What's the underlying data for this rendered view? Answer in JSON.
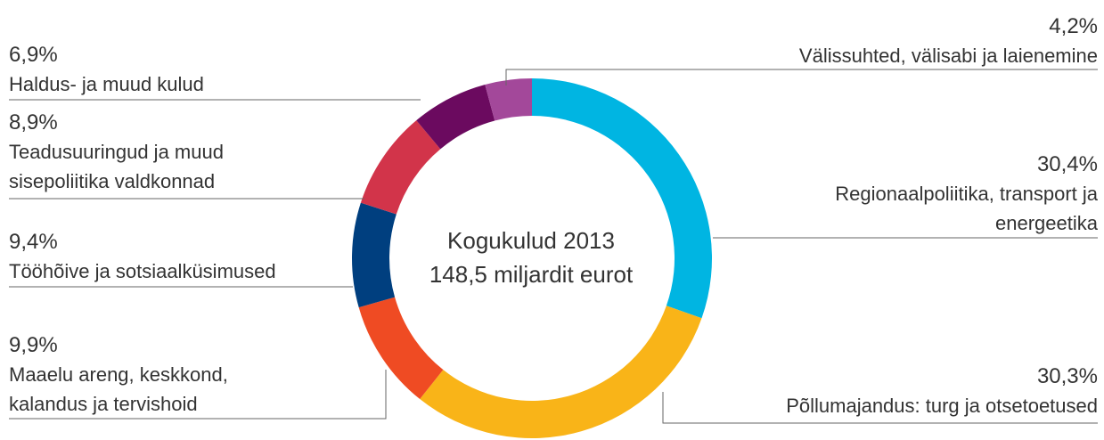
{
  "chart_data": {
    "type": "pie",
    "donut": true,
    "categories": [
      "Regionaalpoliitika, transport ja energeetika",
      "Põllumajandus: turg ja otsetoetused",
      "Maaelu areng, keskkond, kalandus ja tervishoid",
      "Tööhõive ja sotsiaalküsimused",
      "Teadusuuringud ja muud sisepoliitika valdkonnad",
      "Haldus- ja muud kulud",
      "Välissuhted, välisabi ja laienemine"
    ],
    "values": [
      30.4,
      30.3,
      9.9,
      9.4,
      8.9,
      6.9,
      4.2
    ],
    "value_labels": [
      "30,4%",
      "30,3%",
      "9,9%",
      "9,4%",
      "8,9%",
      "6,9%",
      "4,2%"
    ],
    "colors": [
      "#00b5e2",
      "#f9b418",
      "#ef4b23",
      "#003f7f",
      "#d2344a",
      "#6b0a5f",
      "#a3489a"
    ],
    "annotations": [
      "Kogukulud 2013",
      "148,5 miljardit eurot"
    ]
  }
}
